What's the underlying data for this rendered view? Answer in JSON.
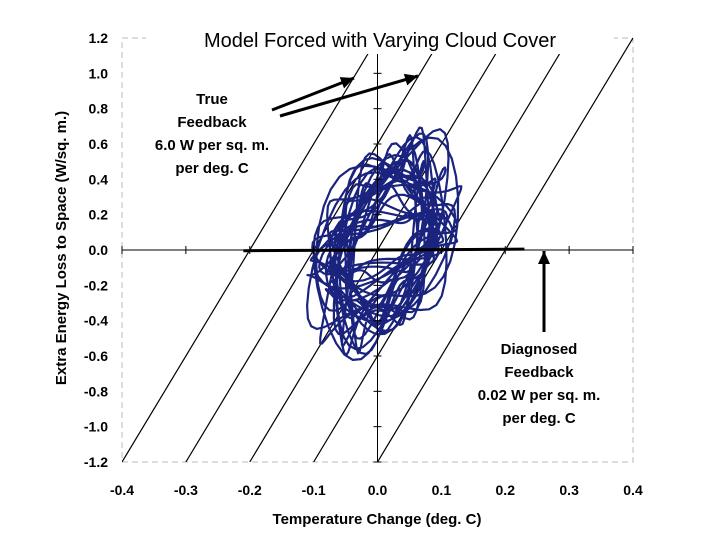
{
  "chart_data": {
    "type": "line",
    "title": "Model Forced with Varying Cloud Cover",
    "xlabel": "Temperature Change (deg. C)",
    "ylabel": "Extra Energy Loss to Space (W/sq. m.)",
    "xlim": [
      -0.4,
      0.4
    ],
    "ylim": [
      -1.2,
      1.2
    ],
    "x_ticks": [
      "-0.4",
      "-0.3",
      "-0.2",
      "-0.1",
      "0.0",
      "0.1",
      "0.2",
      "0.3",
      "0.4"
    ],
    "y_ticks": [
      "1.2",
      "1.0",
      "0.8",
      "0.6",
      "0.4",
      "0.2",
      "0.0",
      "-0.2",
      "-0.4",
      "-0.6",
      "-0.8",
      "-1.0",
      "-1.2"
    ],
    "grid": false,
    "reference_lines": {
      "slope": 6.0,
      "intercepts": [
        -0.2,
        -0.1,
        0.0,
        0.1,
        0.2
      ]
    },
    "regression_line": {
      "slope": 0.02,
      "x": [
        -0.21,
        0.23
      ]
    },
    "loop_bounds": {
      "x": [
        -0.115,
        0.135
      ],
      "y": [
        -0.68,
        0.75
      ]
    },
    "colors": {
      "loop": "#1a237e",
      "lines": "#000000"
    },
    "annotations": [
      {
        "id": "true-feedback",
        "lines": [
          "True",
          "Feedback",
          "6.0 W per sq. m.",
          "per deg. C"
        ]
      },
      {
        "id": "diagnosed-feedback",
        "lines": [
          "Diagnosed",
          "Feedback",
          "0.02 W per sq. m.",
          "per deg. C"
        ]
      }
    ]
  }
}
